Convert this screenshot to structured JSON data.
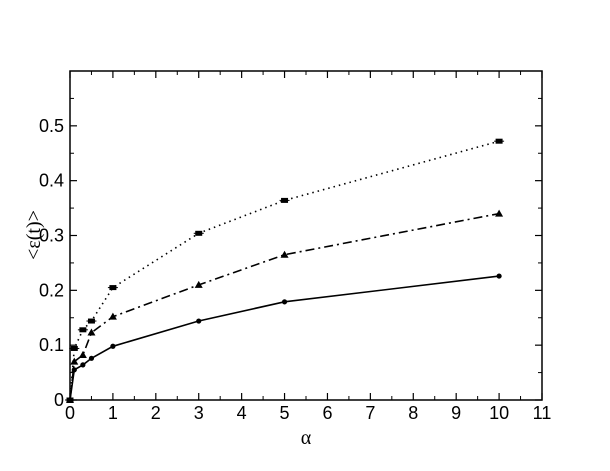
{
  "chart_data": {
    "type": "line",
    "title": "",
    "xlabel": "α",
    "ylabel": "<ε(t)>",
    "xlim": [
      0,
      11
    ],
    "ylim": [
      0,
      0.6
    ],
    "xticks": [
      0,
      1,
      2,
      3,
      4,
      5,
      6,
      7,
      8,
      9,
      10,
      11
    ],
    "yticks": [
      0,
      0.1,
      0.2,
      0.3,
      0.4,
      0.5
    ],
    "ytick_labels": [
      "0",
      "0.1",
      "0.2",
      "0.3",
      "0.4",
      "0.5"
    ],
    "grid": false,
    "legend": "none",
    "series": [
      {
        "line_style": "dotted",
        "marker": "square",
        "x": [
          0,
          0.1,
          0.3,
          0.5,
          1,
          3,
          5,
          10
        ],
        "y": [
          0.0,
          0.094,
          0.128,
          0.144,
          0.205,
          0.304,
          0.364,
          0.472
        ]
      },
      {
        "line_style": "dash-dot",
        "marker": "triangle",
        "x": [
          0,
          0.1,
          0.3,
          0.5,
          1,
          3,
          5,
          10
        ],
        "y": [
          0.0,
          0.07,
          0.082,
          0.123,
          0.152,
          0.21,
          0.265,
          0.34
        ]
      },
      {
        "line_style": "solid",
        "marker": "circle",
        "x": [
          0,
          0.1,
          0.3,
          0.5,
          1,
          3,
          5,
          10
        ],
        "y": [
          0.0,
          0.055,
          0.064,
          0.076,
          0.098,
          0.144,
          0.179,
          0.226
        ]
      }
    ]
  }
}
